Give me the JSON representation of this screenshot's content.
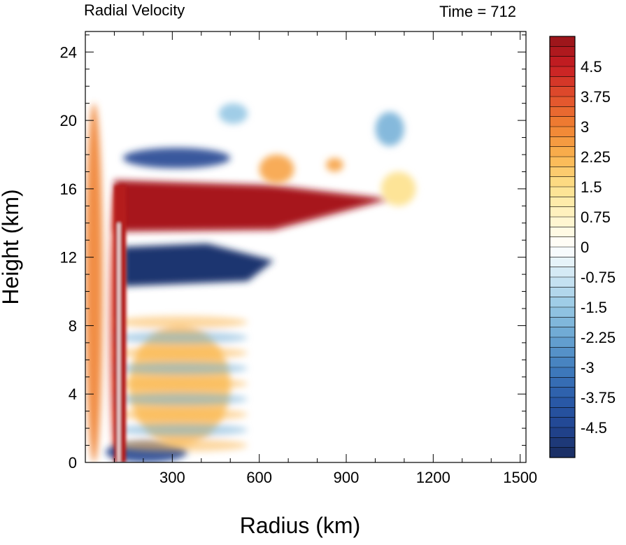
{
  "chart_data": {
    "type": "heatmap",
    "title": "Radial Velocity",
    "subtitle": "Time = 712",
    "xlabel": "Radius (km)",
    "ylabel": "Height (km)",
    "xlim": [
      0,
      1520
    ],
    "ylim": [
      0,
      25.2
    ],
    "x_ticks": [
      300,
      600,
      900,
      1200,
      1500
    ],
    "y_ticks": [
      0,
      4,
      8,
      12,
      16,
      20,
      24
    ],
    "colorbar": {
      "vmin": -5.25,
      "vmax": 5.25,
      "step": 0.25,
      "labeled_ticks": [
        "4.5",
        "3.75",
        "3",
        "2.25",
        "1.5",
        "0.75",
        "0",
        "-0.75",
        "-1.5",
        "-2.25",
        "-3",
        "-3.75",
        "-4.5"
      ],
      "labeled_values": [
        4.5,
        3.75,
        3,
        2.25,
        1.5,
        0.75,
        0,
        -0.75,
        -1.5,
        -2.25,
        -3,
        -3.75,
        -4.5
      ]
    },
    "features": [
      {
        "radius": [
          100,
          1050
        ],
        "height": [
          13.5,
          16.5
        ],
        "value": 5
      },
      {
        "radius": [
          130,
          650
        ],
        "height": [
          10.5,
          12.5
        ],
        "value": -5
      },
      {
        "radius": [
          130,
          500
        ],
        "height": [
          17.2,
          18.4
        ],
        "value": -4.5
      },
      {
        "radius": [
          85,
          130
        ],
        "height": [
          0,
          16
        ],
        "value": 4
      },
      {
        "radius": [
          460,
          560
        ],
        "height": [
          19.8,
          21
        ],
        "value": -1.5
      },
      {
        "radius": [
          1000,
          1100
        ],
        "height": [
          18.5,
          20.5
        ],
        "value": -2
      },
      {
        "radius": [
          600,
          720
        ],
        "height": [
          16.3,
          18
        ],
        "value": 2.5
      },
      {
        "radius": [
          830,
          890
        ],
        "height": [
          17,
          17.8
        ],
        "value": 2.5
      },
      {
        "radius": [
          1020,
          1140
        ],
        "height": [
          15,
          17
        ],
        "value": 1.5
      },
      {
        "radius": [
          70,
          350
        ],
        "height": [
          0,
          1.2
        ],
        "value": -4.5
      },
      {
        "radius": [
          150,
          500
        ],
        "height": [
          1,
          8
        ],
        "value": 2
      },
      {
        "radius": [
          0,
          60
        ],
        "height": [
          0,
          21
        ],
        "value": 3
      }
    ]
  }
}
